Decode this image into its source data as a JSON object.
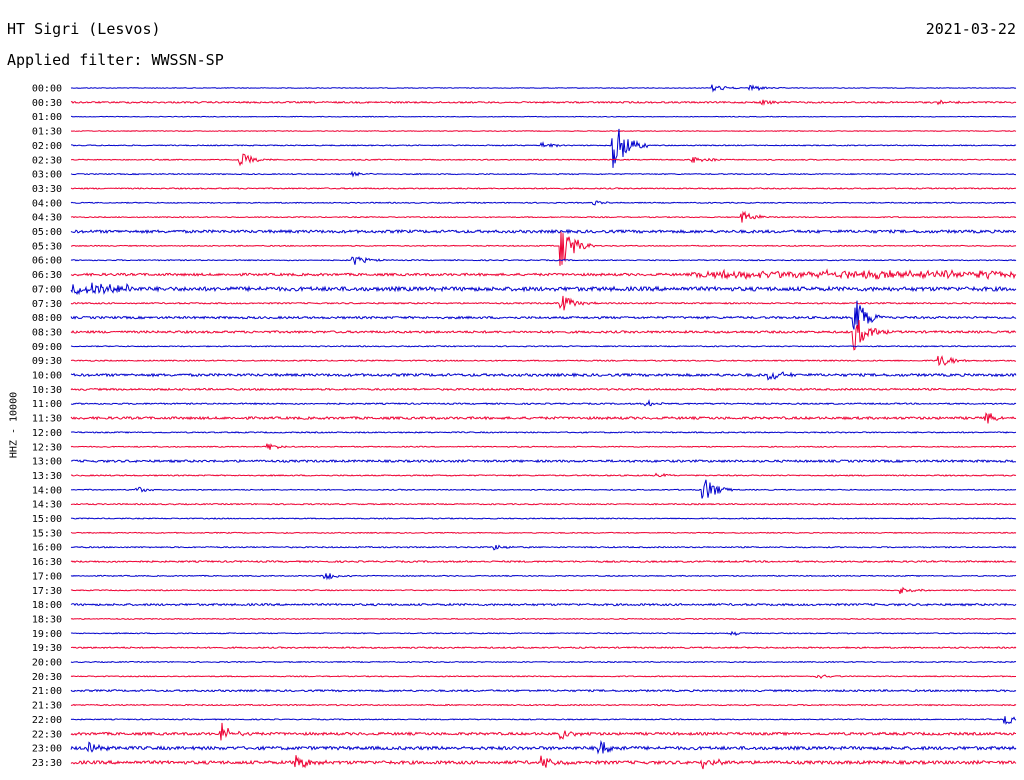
{
  "header": {
    "station": "HT Sigri (Lesvos)",
    "date": "2021-03-22",
    "filter": "Applied filter: WWSSN-SP"
  },
  "chart_data": {
    "type": "line",
    "title": "HT Sigri (Lesvos)",
    "ylabel": "HHZ - 10000",
    "trace_colors": [
      "#0000cc",
      "#ee0033"
    ],
    "grid": false,
    "rows": [
      {
        "label": "00:00",
        "noise": 0.35,
        "events": [
          {
            "x": 0.68,
            "amp": 4
          },
          {
            "x": 0.72,
            "amp": 4
          }
        ]
      },
      {
        "label": "00:30",
        "noise": 0.8,
        "events": [
          {
            "x": 0.73,
            "amp": 3
          },
          {
            "x": 0.92,
            "amp": 2
          }
        ]
      },
      {
        "label": "01:00",
        "noise": 0.35,
        "events": []
      },
      {
        "label": "01:30",
        "noise": 0.35,
        "events": []
      },
      {
        "label": "02:00",
        "noise": 0.5,
        "events": [
          {
            "x": 0.5,
            "amp": 3
          },
          {
            "x": 0.575,
            "amp": 28
          }
        ]
      },
      {
        "label": "02:30",
        "noise": 0.5,
        "events": [
          {
            "x": 0.18,
            "amp": 7
          },
          {
            "x": 0.66,
            "amp": 5
          }
        ]
      },
      {
        "label": "03:00",
        "noise": 0.5,
        "events": [
          {
            "x": 0.3,
            "amp": 2
          }
        ]
      },
      {
        "label": "03:30",
        "noise": 0.6,
        "events": []
      },
      {
        "label": "04:00",
        "noise": 0.5,
        "events": [
          {
            "x": 0.555,
            "amp": 2
          }
        ]
      },
      {
        "label": "04:30",
        "noise": 0.5,
        "events": [
          {
            "x": 0.71,
            "amp": 7
          }
        ]
      },
      {
        "label": "05:00",
        "noise": 1.4,
        "events": []
      },
      {
        "label": "05:30",
        "noise": 0.5,
        "events": [
          {
            "x": 0.52,
            "amp": 22
          }
        ]
      },
      {
        "label": "06:00",
        "noise": 0.5,
        "events": [
          {
            "x": 0.3,
            "amp": 5
          }
        ]
      },
      {
        "label": "06:30",
        "noise": 1.2,
        "events": [
          {
            "x": 0.66,
            "amp": 4,
            "len": 0.34
          }
        ]
      },
      {
        "label": "07:00",
        "noise": 2.0,
        "events": [
          {
            "x": 0.0,
            "amp": 6,
            "len": 0.07
          }
        ]
      },
      {
        "label": "07:30",
        "noise": 0.7,
        "events": [
          {
            "x": 0.52,
            "amp": 9
          }
        ]
      },
      {
        "label": "08:00",
        "noise": 1.1,
        "events": [
          {
            "x": 0.83,
            "amp": 20
          }
        ]
      },
      {
        "label": "08:30",
        "noise": 1.1,
        "events": [
          {
            "x": 0.83,
            "amp": 18
          }
        ]
      },
      {
        "label": "09:00",
        "noise": 0.5,
        "events": []
      },
      {
        "label": "09:30",
        "noise": 0.6,
        "events": [
          {
            "x": 0.92,
            "amp": 7
          }
        ]
      },
      {
        "label": "10:00",
        "noise": 1.3,
        "events": [
          {
            "x": 0.74,
            "amp": 6
          }
        ]
      },
      {
        "label": "10:30",
        "noise": 0.9,
        "events": []
      },
      {
        "label": "11:00",
        "noise": 0.7,
        "events": [
          {
            "x": 0.61,
            "amp": 3
          }
        ]
      },
      {
        "label": "11:30",
        "noise": 1.2,
        "events": [
          {
            "x": 0.97,
            "amp": 6
          }
        ]
      },
      {
        "label": "12:00",
        "noise": 0.6,
        "events": []
      },
      {
        "label": "12:30",
        "noise": 0.5,
        "events": [
          {
            "x": 0.21,
            "amp": 3
          }
        ]
      },
      {
        "label": "13:00",
        "noise": 1.1,
        "events": []
      },
      {
        "label": "13:30",
        "noise": 0.6,
        "events": [
          {
            "x": 0.62,
            "amp": 2
          }
        ]
      },
      {
        "label": "14:00",
        "noise": 0.5,
        "events": [
          {
            "x": 0.07,
            "amp": 3
          },
          {
            "x": 0.67,
            "amp": 13
          }
        ]
      },
      {
        "label": "14:30",
        "noise": 0.6,
        "events": []
      },
      {
        "label": "15:00",
        "noise": 0.5,
        "events": []
      },
      {
        "label": "15:30",
        "noise": 0.5,
        "events": []
      },
      {
        "label": "16:00",
        "noise": 0.6,
        "events": [
          {
            "x": 0.45,
            "amp": 3
          }
        ]
      },
      {
        "label": "16:30",
        "noise": 0.8,
        "events": []
      },
      {
        "label": "17:00",
        "noise": 0.5,
        "events": [
          {
            "x": 0.27,
            "amp": 4
          }
        ]
      },
      {
        "label": "17:30",
        "noise": 0.5,
        "events": [
          {
            "x": 0.88,
            "amp": 4
          }
        ]
      },
      {
        "label": "18:00",
        "noise": 1.0,
        "events": []
      },
      {
        "label": "18:30",
        "noise": 0.5,
        "events": []
      },
      {
        "label": "19:00",
        "noise": 0.5,
        "events": [
          {
            "x": 0.7,
            "amp": 2
          }
        ]
      },
      {
        "label": "19:30",
        "noise": 0.7,
        "events": []
      },
      {
        "label": "20:00",
        "noise": 0.5,
        "events": []
      },
      {
        "label": "20:30",
        "noise": 0.5,
        "events": [
          {
            "x": 0.79,
            "amp": 3
          }
        ]
      },
      {
        "label": "21:00",
        "noise": 0.9,
        "events": []
      },
      {
        "label": "21:30",
        "noise": 0.6,
        "events": []
      },
      {
        "label": "22:00",
        "noise": 0.5,
        "events": [
          {
            "x": 0.99,
            "amp": 5
          }
        ]
      },
      {
        "label": "22:30",
        "noise": 1.3,
        "events": [
          {
            "x": 0.16,
            "amp": 10
          },
          {
            "x": 0.52,
            "amp": 6
          }
        ]
      },
      {
        "label": "23:00",
        "noise": 1.6,
        "events": [
          {
            "x": 0.02,
            "amp": 7
          },
          {
            "x": 0.56,
            "amp": 10
          }
        ]
      },
      {
        "label": "23:30",
        "noise": 1.6,
        "events": [
          {
            "x": 0.24,
            "amp": 7
          },
          {
            "x": 0.5,
            "amp": 6
          },
          {
            "x": 0.67,
            "amp": 6
          }
        ]
      }
    ]
  }
}
